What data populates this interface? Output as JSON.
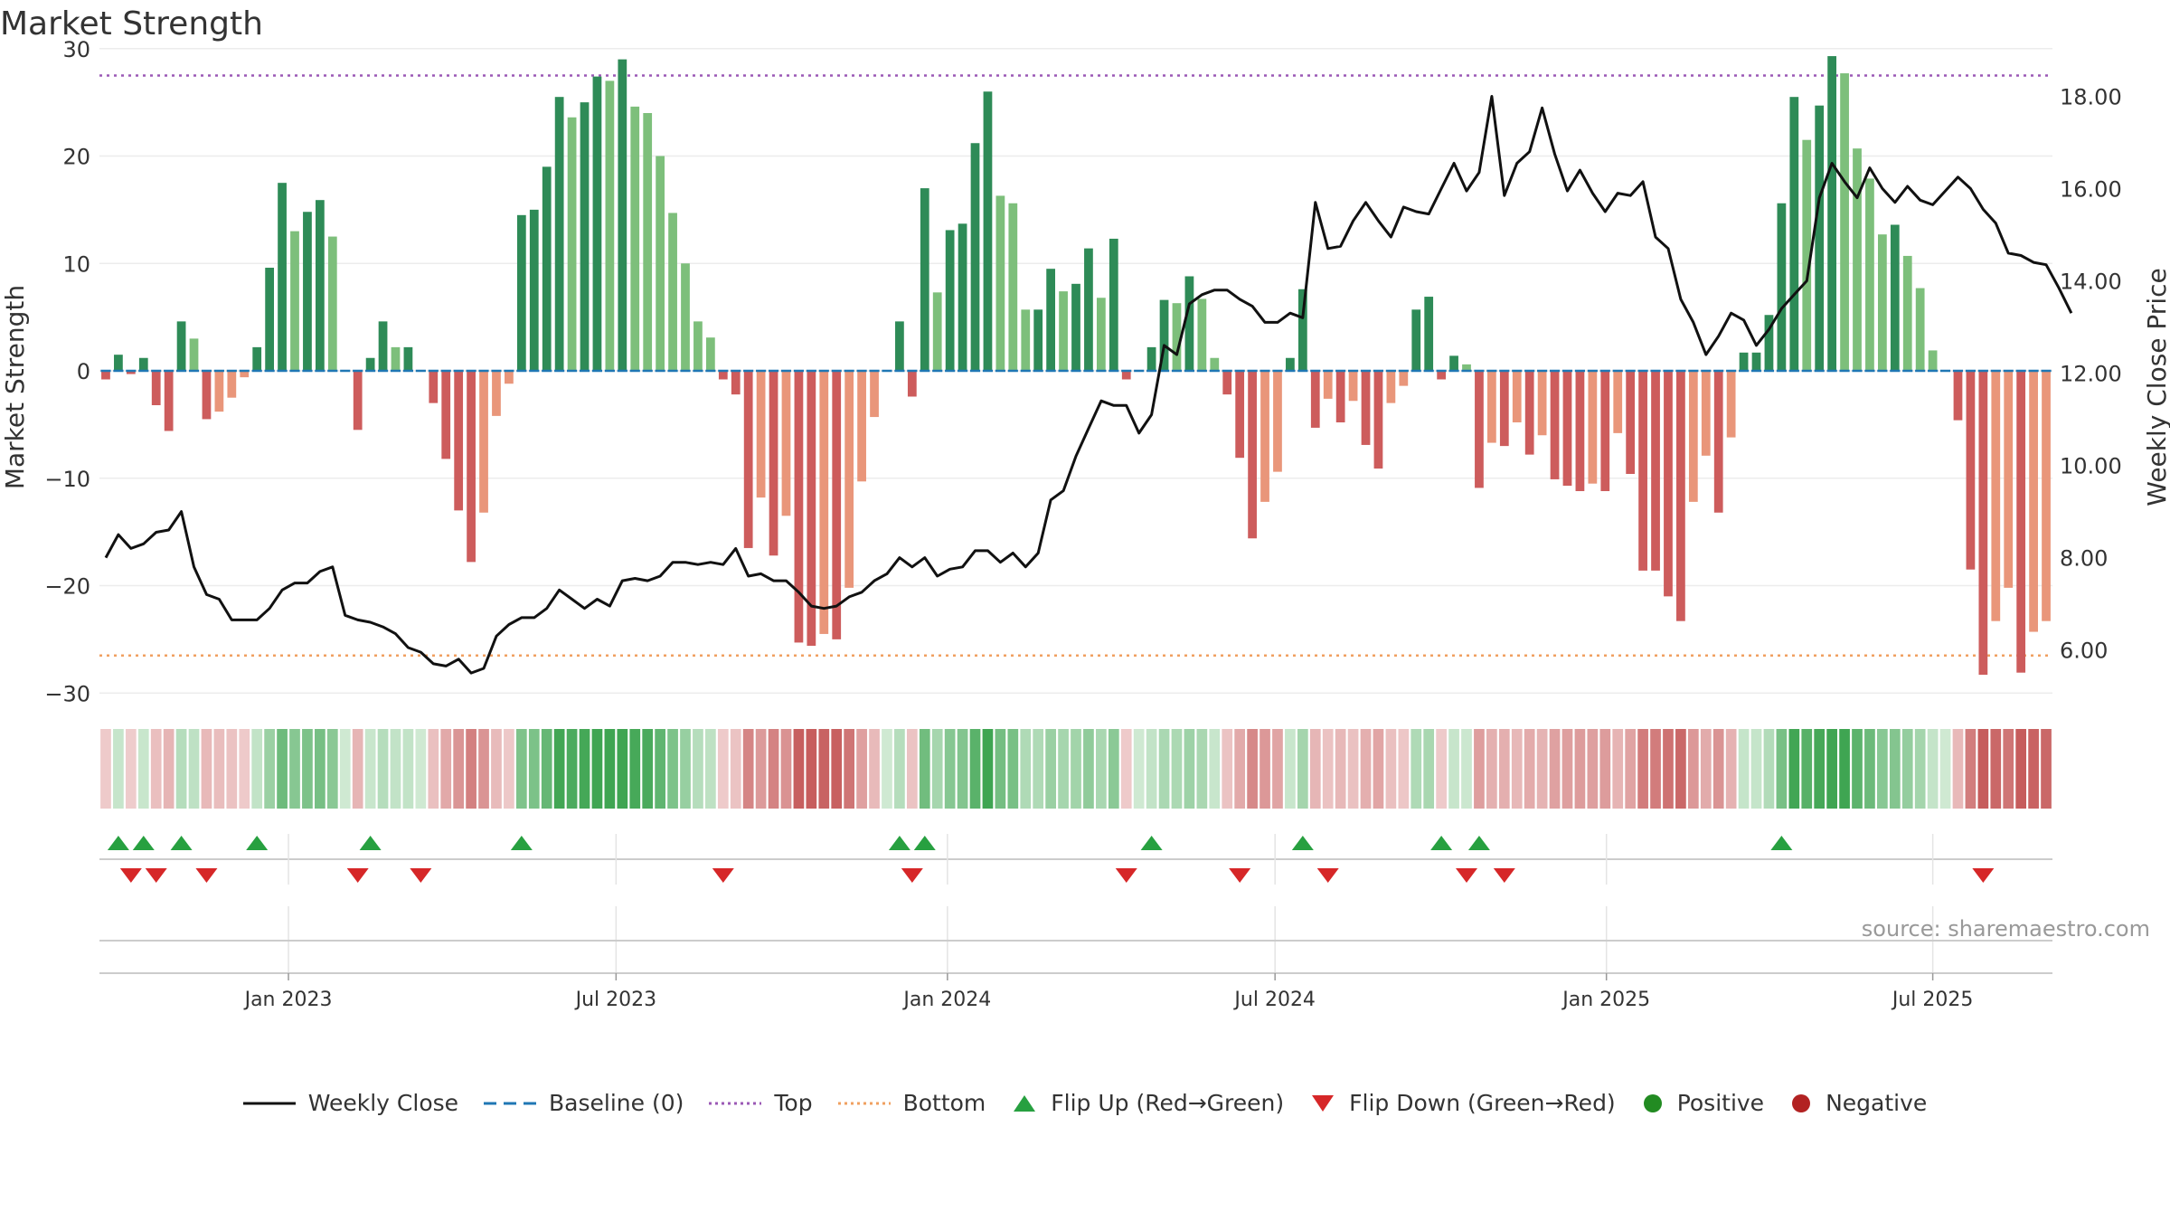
{
  "title": "Market Strength",
  "source": "source: sharemaestro.com",
  "colors": {
    "pos_strong": "#2e8b57",
    "pos_weak": "#7dbf7b",
    "neg_strong": "#cd5c5c",
    "neg_weak": "#e9967a",
    "line": "#111111",
    "baseline": "#1f77b4",
    "top": "#9b59b6",
    "bottom": "#f0a060",
    "flip_up": "#27a040",
    "flip_down": "#d62728",
    "grid": "#ececec"
  },
  "chart_data": {
    "type": "bar",
    "title": "Market Strength",
    "ylabel": "Market Strength",
    "y2label": "Weekly Close Price",
    "ylim": [
      -32,
      32
    ],
    "y2lim": [
      4.6,
      19.5
    ],
    "yticks": [
      30,
      20,
      10,
      0,
      -10,
      -20,
      -30
    ],
    "ytick_labels": [
      "30",
      "20",
      "10",
      "0",
      "−10",
      "−20",
      "−30"
    ],
    "y2ticks": [
      18,
      16,
      14,
      12,
      10,
      8,
      6
    ],
    "y2tick_labels": [
      "18.00",
      "16.00",
      "14.00",
      "12.00",
      "10.00",
      "8.00",
      "6.00"
    ],
    "top_level": 27.5,
    "bottom_level": -26.5,
    "x_tick_labels": [
      {
        "label": "Jan 2023",
        "week": 14.5
      },
      {
        "label": "Jul 2023",
        "week": 40.5
      },
      {
        "label": "Jan 2024",
        "week": 66.8
      },
      {
        "label": "Jul 2024",
        "week": 92.8
      },
      {
        "label": "Jan 2025",
        "week": 119.1
      },
      {
        "label": "Jul 2025",
        "week": 145.0
      }
    ],
    "strength": [
      -0.8,
      1.5,
      -0.3,
      1.2,
      -3.2,
      -5.6,
      4.6,
      3.0,
      -4.5,
      -3.8,
      -2.5,
      -0.6,
      2.2,
      9.6,
      17.5,
      13.0,
      14.8,
      15.9,
      12.5,
      0,
      -5.5,
      1.2,
      4.6,
      2.2,
      2.2,
      0,
      -3.0,
      -8.2,
      -13.0,
      -17.8,
      -13.2,
      -4.2,
      -1.2,
      14.5,
      15.0,
      19.0,
      25.5,
      23.6,
      25.0,
      27.4,
      27.0,
      29.0,
      24.6,
      24.0,
      20.0,
      14.7,
      10.0,
      4.6,
      3.1,
      -0.8,
      -2.2,
      -16.5,
      -11.8,
      -17.2,
      -13.5,
      -25.3,
      -25.6,
      -24.5,
      -25.0,
      -20.2,
      -10.3,
      -4.3,
      0,
      4.6,
      -2.4,
      17.0,
      7.3,
      13.1,
      13.7,
      21.2,
      26.0,
      16.3,
      15.6,
      5.7,
      5.7,
      9.5,
      7.4,
      8.1,
      11.4,
      6.8,
      12.3,
      -0.8,
      0,
      2.2,
      6.6,
      6.3,
      8.8,
      6.7,
      1.2,
      -2.2,
      -8.1,
      -15.6,
      -12.2,
      -9.4,
      1.2,
      7.6,
      -5.3,
      -2.6,
      -4.8,
      -2.8,
      -6.9,
      -9.1,
      -3.0,
      -1.4,
      5.7,
      6.9,
      -0.8,
      1.4,
      0.6,
      -10.9,
      -6.7,
      -7.0,
      -4.8,
      -7.8,
      -6.0,
      -10.1,
      -10.7,
      -11.2,
      -10.5,
      -11.2,
      -5.8,
      -9.6,
      -18.6,
      -18.6,
      -21.0,
      -23.3,
      -12.2,
      -7.9,
      -13.2,
      -6.2,
      1.7,
      1.7,
      5.2,
      15.6,
      25.5,
      21.5,
      24.7,
      29.3,
      27.7,
      20.7,
      17.9,
      12.7,
      13.6,
      10.7,
      7.7,
      1.9,
      0,
      -4.6,
      -18.5,
      -28.3,
      -23.3,
      -20.2,
      -28.1,
      -24.3,
      -23.3
    ],
    "close": [
      8.0,
      8.5,
      8.2,
      8.3,
      8.55,
      8.6,
      9.0,
      7.8,
      7.2,
      7.1,
      6.65,
      6.65,
      6.65,
      6.9,
      7.3,
      7.45,
      7.45,
      7.7,
      7.8,
      6.75,
      6.65,
      6.6,
      6.5,
      6.35,
      6.05,
      5.95,
      5.7,
      5.65,
      5.8,
      5.5,
      5.6,
      6.3,
      6.55,
      6.7,
      6.7,
      6.9,
      7.3,
      7.1,
      6.9,
      7.1,
      6.95,
      7.5,
      7.55,
      7.5,
      7.6,
      7.9,
      7.9,
      7.85,
      7.9,
      7.85,
      8.2,
      7.6,
      7.65,
      7.5,
      7.5,
      7.25,
      6.95,
      6.9,
      6.95,
      7.15,
      7.25,
      7.5,
      7.65,
      8.0,
      7.8,
      8.0,
      7.6,
      7.75,
      7.8,
      8.15,
      8.15,
      7.9,
      8.1,
      7.8,
      8.1,
      9.25,
      9.45,
      10.2,
      10.8,
      11.4,
      11.3,
      11.3,
      10.7,
      11.1,
      12.6,
      12.4,
      13.5,
      13.7,
      13.8,
      13.8,
      13.6,
      13.45,
      13.1,
      13.1,
      13.3,
      13.2,
      15.7,
      14.7,
      14.75,
      15.3,
      15.7,
      15.3,
      14.95,
      15.6,
      15.5,
      15.45,
      16.0,
      16.55,
      15.95,
      16.35,
      18.0,
      15.85,
      16.55,
      16.8,
      17.75,
      16.75,
      15.95,
      16.4,
      15.9,
      15.5,
      15.9,
      15.85,
      16.15,
      14.95,
      14.7,
      13.6,
      13.1,
      12.4,
      12.8,
      13.3,
      13.15,
      12.6,
      12.95,
      13.4,
      13.7,
      14.0,
      15.8,
      16.55,
      16.15,
      15.8,
      16.45,
      16.0,
      15.7,
      16.05,
      15.75,
      15.65,
      15.95,
      16.25,
      16.0,
      15.55,
      15.25,
      14.6,
      14.55,
      14.4,
      14.35,
      13.85,
      13.3
    ],
    "flip_up_weeks": [
      1,
      3,
      6,
      12,
      21,
      33,
      63,
      65,
      83,
      95,
      106,
      109,
      133
    ],
    "flip_down_weeks": [
      2,
      4,
      8,
      20,
      25,
      49,
      64,
      81,
      90,
      97,
      108,
      111,
      149
    ]
  },
  "legend": [
    {
      "label": "Weekly Close",
      "icon": "line"
    },
    {
      "label": "Baseline (0)",
      "icon": "dash"
    },
    {
      "label": "Top",
      "icon": "dot"
    },
    {
      "label": "Bottom",
      "icon": "dot"
    },
    {
      "label": "Flip Up (Red→Green)",
      "icon": "triangle-up"
    },
    {
      "label": "Flip Down (Green→Red)",
      "icon": "triangle-down"
    },
    {
      "label": "Positive",
      "icon": "circle"
    },
    {
      "label": "Negative",
      "icon": "circle"
    }
  ]
}
